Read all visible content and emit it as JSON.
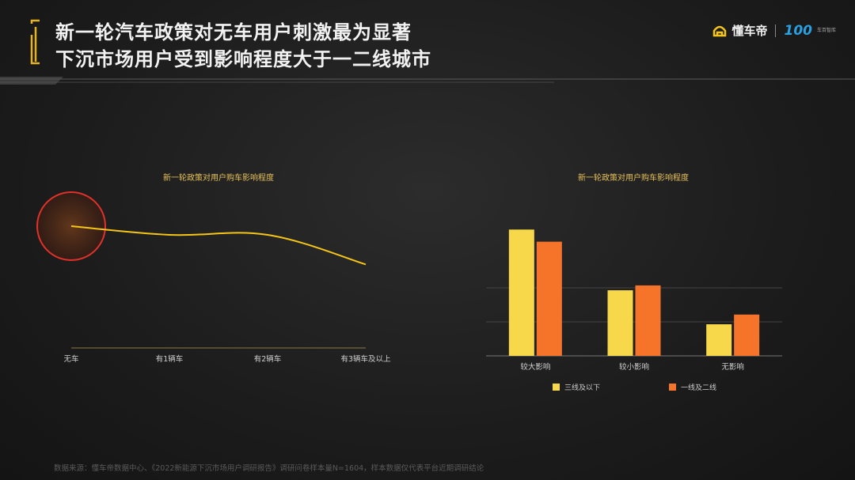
{
  "header": {
    "title_line1": "新一轮汽车政策对无车用户刺激最为显著",
    "title_line2": "下沉市场用户受到影响程度大于一二线城市",
    "brand_name": "懂车帝",
    "brand_100": "100",
    "brand_100_sub": "车百智库"
  },
  "footer": {
    "source": "数据来源：懂车帝数据中心、《2022新能源下沉市场用户调研报告》调研问卷样本量N=1604，样本数据仅代表平台近期调研结论"
  },
  "chart_data": [
    {
      "type": "line",
      "title": "新一轮政策对用户购车影响程度",
      "categories": [
        "无车",
        "有1辆车",
        "有2辆车",
        "有3辆车及以上"
      ],
      "series": [
        {
          "values": [
            7.0,
            6.5,
            6.5,
            4.8
          ],
          "color": "#f5c518"
        }
      ],
      "ylim": [
        0,
        10
      ],
      "highlight_category": "无车",
      "highlight_color": "#e0322a",
      "grid": false
    },
    {
      "type": "bar",
      "title": "新一轮政策对用户购车影响程度",
      "categories": [
        "较大影响",
        "较小影响",
        "无影响"
      ],
      "series": [
        {
          "name": "三线及以下",
          "values": [
            52,
            27,
            13
          ],
          "color": "#f7d84a"
        },
        {
          "name": "一线及二线",
          "values": [
            47,
            29,
            17
          ],
          "color": "#f5742a"
        }
      ],
      "ylim": [
        0,
        56
      ],
      "grid": true,
      "legend_position": "bottom"
    }
  ]
}
